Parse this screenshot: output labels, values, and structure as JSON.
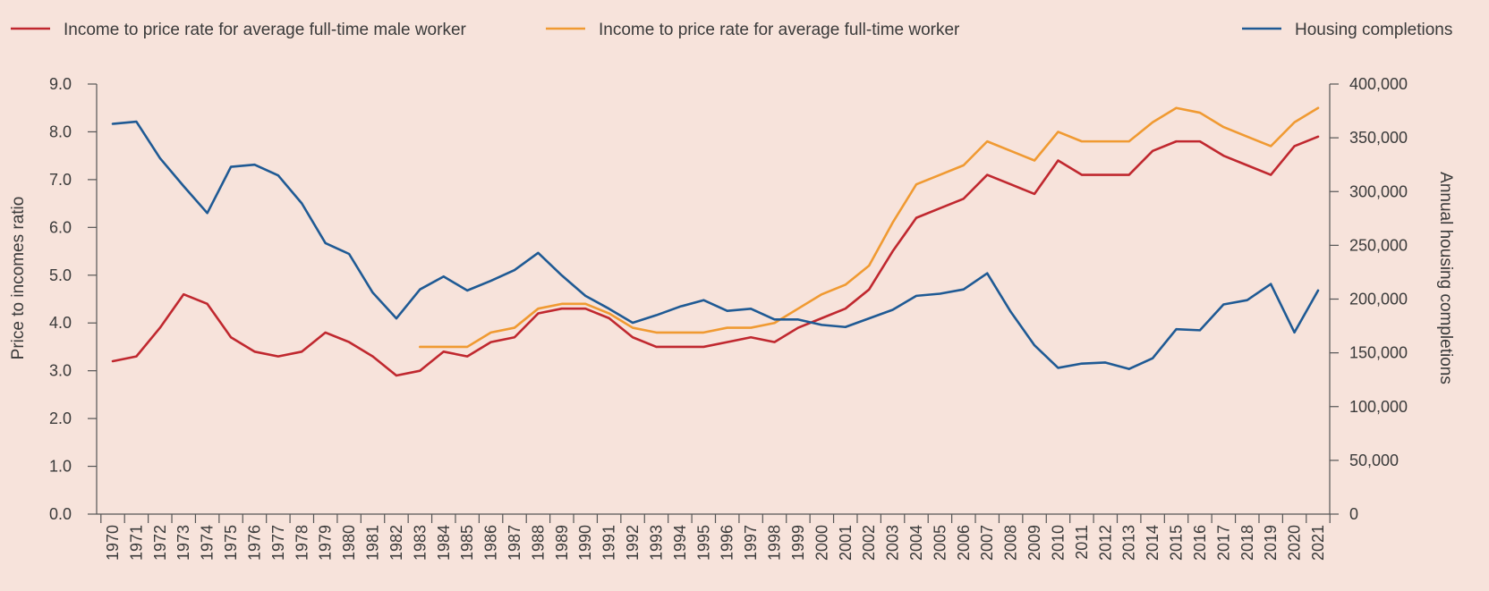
{
  "chart_data": {
    "type": "line",
    "x": [
      1970,
      1971,
      1972,
      1973,
      1974,
      1975,
      1976,
      1977,
      1978,
      1979,
      1980,
      1981,
      1982,
      1983,
      1984,
      1985,
      1986,
      1987,
      1988,
      1989,
      1990,
      1991,
      1992,
      1993,
      1994,
      1995,
      1996,
      1997,
      1998,
      1999,
      2000,
      2001,
      2002,
      2003,
      2004,
      2005,
      2006,
      2007,
      2008,
      2009,
      2010,
      2011,
      2012,
      2013,
      2014,
      2015,
      2016,
      2017,
      2018,
      2019,
      2020,
      2021
    ],
    "x_tick_labels": [
      "1970",
      "1971",
      "1972",
      "1973",
      "1974",
      "1975",
      "1976",
      "1977",
      "1978",
      "1979",
      "1980",
      "1981",
      "1982",
      "1983",
      "1984",
      "1985",
      "1986",
      "1987",
      "1988",
      "1989",
      "1990",
      "1991",
      "1992",
      "1993",
      "1994",
      "1995",
      "1996",
      "1997",
      "1998",
      "1999",
      "2000",
      "2001",
      "2002",
      "2003",
      "2004",
      "2005",
      "2006",
      "2007",
      "2008",
      "2009",
      "2010",
      "2011",
      "2012",
      "2013",
      "2014",
      "2015",
      "2016",
      "2017",
      "2018",
      "2019",
      "2020",
      "2021"
    ],
    "ylabel": "Price to incomes ratio",
    "ylim": [
      0,
      9
    ],
    "y_tick_labels": [
      "0.0",
      "1.0",
      "2.0",
      "3.0",
      "4.0",
      "5.0",
      "6.0",
      "7.0",
      "8.0",
      "9.0"
    ],
    "y2label": "Annual housing completions",
    "y2lim": [
      0,
      400000
    ],
    "y2_tick_labels": [
      "0",
      "50,000",
      "100,000",
      "150,000",
      "200,000",
      "250,000",
      "300,000",
      "350,000",
      "400,000"
    ],
    "grid": false,
    "legend_position": "top",
    "series": [
      {
        "name": "Income to price rate for average full-time male worker",
        "axis": "left",
        "color": "#c0282f",
        "values": [
          3.2,
          3.3,
          3.9,
          4.6,
          4.4,
          3.7,
          3.4,
          3.3,
          3.4,
          3.8,
          3.6,
          3.3,
          2.9,
          3.0,
          3.4,
          3.3,
          3.6,
          3.7,
          4.2,
          4.3,
          4.3,
          4.1,
          3.7,
          3.5,
          3.5,
          3.5,
          3.6,
          3.7,
          3.6,
          3.9,
          4.1,
          4.3,
          4.7,
          5.5,
          6.2,
          6.4,
          6.6,
          7.1,
          6.9,
          6.7,
          7.4,
          7.1,
          7.1,
          7.1,
          7.6,
          7.8,
          7.8,
          7.5,
          7.3,
          7.1,
          7.7,
          7.9
        ]
      },
      {
        "name": "Income to price rate for average full-time worker",
        "axis": "left",
        "color": "#f09a32",
        "values": [
          null,
          null,
          null,
          null,
          null,
          null,
          null,
          null,
          null,
          null,
          null,
          null,
          null,
          3.5,
          3.5,
          3.5,
          3.8,
          3.9,
          4.3,
          4.4,
          4.4,
          4.2,
          3.9,
          3.8,
          3.8,
          3.8,
          3.9,
          3.9,
          4.0,
          4.3,
          4.6,
          4.8,
          5.2,
          6.1,
          6.9,
          7.1,
          7.3,
          7.8,
          7.6,
          7.4,
          8.0,
          7.8,
          7.8,
          7.8,
          8.2,
          8.5,
          8.4,
          8.1,
          7.9,
          7.7,
          8.2,
          8.5
        ]
      },
      {
        "name": "Housing completions",
        "axis": "right",
        "color": "#1f5a94",
        "values": [
          363000,
          365000,
          331000,
          305000,
          280000,
          323000,
          325000,
          315000,
          289000,
          252000,
          242000,
          206000,
          182000,
          209000,
          221000,
          208000,
          217000,
          227000,
          243000,
          222000,
          203000,
          191000,
          178000,
          185000,
          193000,
          199000,
          189000,
          191000,
          181000,
          181000,
          176000,
          174000,
          182000,
          190000,
          203000,
          205000,
          209000,
          224000,
          188000,
          157000,
          136000,
          140000,
          141000,
          135000,
          145000,
          172000,
          171000,
          195000,
          199000,
          214000,
          169000,
          208000
        ]
      }
    ]
  }
}
